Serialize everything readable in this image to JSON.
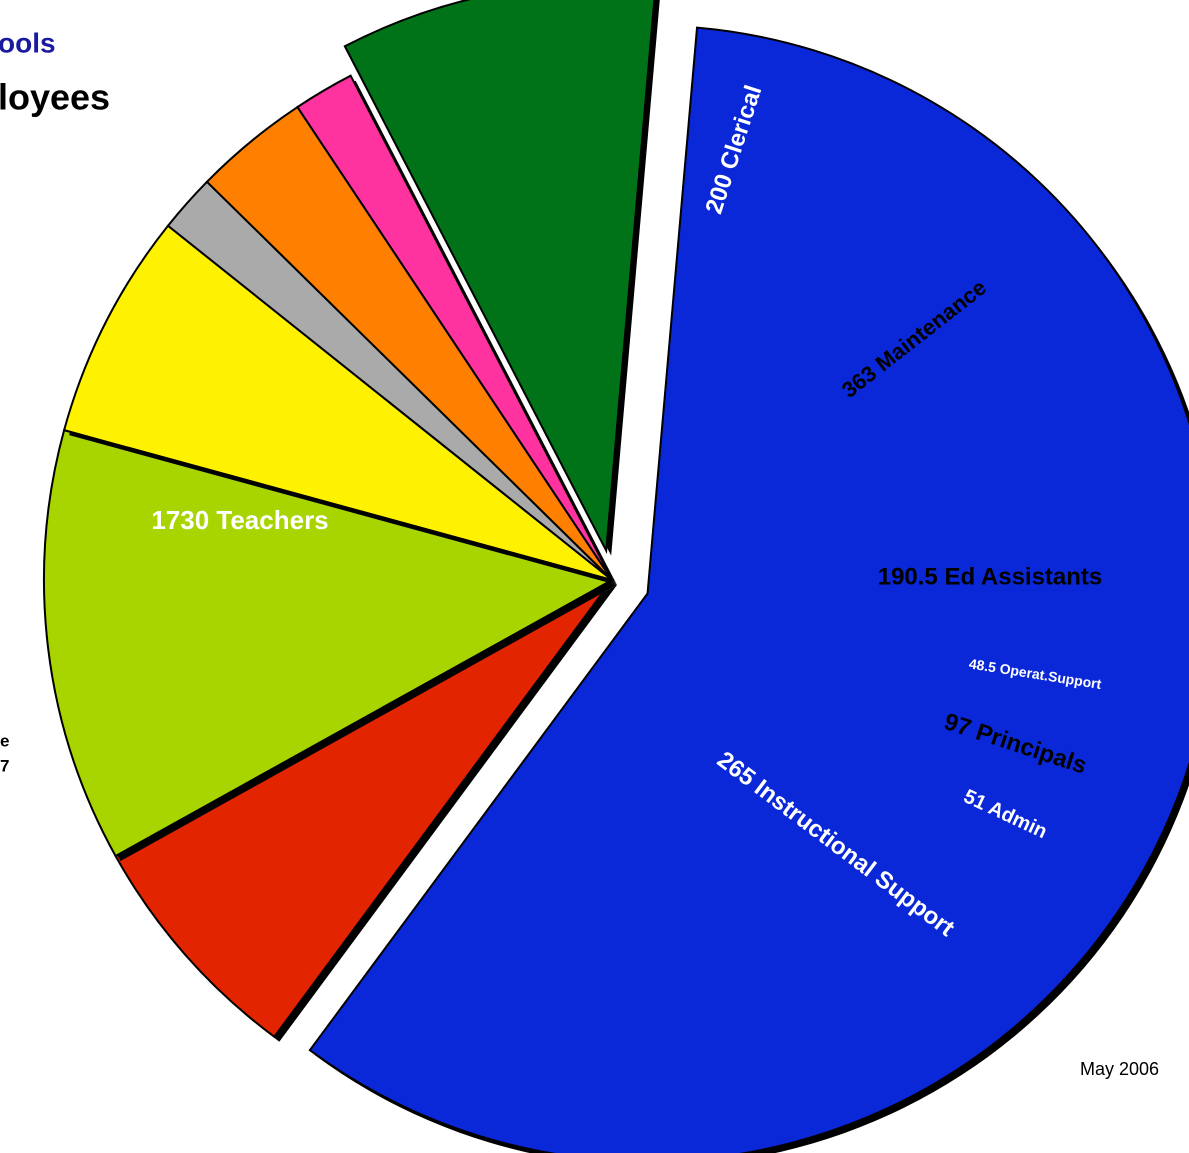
{
  "chart_data": {
    "type": "pie",
    "title": "ools",
    "subtitle": "loyees",
    "annotations": [
      "e",
      "7",
      "May 2006"
    ],
    "values": [
      1730,
      200,
      363,
      190.5,
      48.5,
      97,
      51,
      265
    ],
    "value_labels": [
      "1730  Teachers",
      "200 Clerical",
      "363 Maintenance",
      "190.5 Ed Assistants",
      "48.5 Operat.Support",
      "97 Principals",
      "51 Admin",
      "265 Instructional Support"
    ],
    "colors": [
      "#0a28d8",
      "#e32400",
      "#a8d400",
      "#fff200",
      "#aaaaaa",
      "#ff7f00",
      "#ff33a0",
      "#007318"
    ]
  }
}
